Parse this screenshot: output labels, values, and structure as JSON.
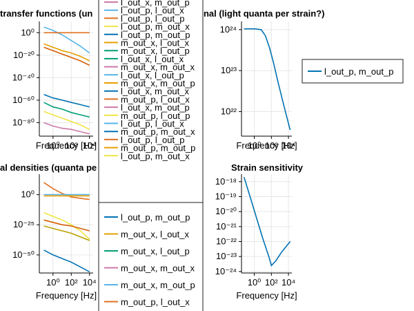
{
  "chart_data": [
    {
      "type": "line",
      "title": "transfer functions (un",
      "xlabel": "Frequency [Hz]",
      "x_scale": "log",
      "y_scale": "log",
      "x_ticks": [
        {
          "v": 0,
          "t": "10⁰"
        },
        {
          "v": 2,
          "t": "10²"
        },
        {
          "v": 4,
          "t": "10⁴"
        }
      ],
      "y_ticks": [
        {
          "v": 0,
          "t": "10⁰"
        },
        {
          "v": -20,
          "t": "10⁻²⁰"
        },
        {
          "v": -40,
          "t": "10⁻⁴⁰"
        },
        {
          "v": -60,
          "t": "10⁻⁶⁰"
        },
        {
          "v": -80,
          "t": "10⁻⁸⁰"
        }
      ],
      "xlim": [
        -1.5,
        4.4
      ],
      "ylim": [
        -92,
        10
      ],
      "grid": true,
      "series": [
        {
          "color": "#56b4e9",
          "x": [
            -1,
            0,
            1,
            2,
            3,
            4
          ],
          "y": [
            5,
            2,
            -2,
            -7,
            -12,
            -18
          ]
        },
        {
          "color": "#e07020",
          "x": [
            -1,
            0,
            1,
            2,
            3,
            4
          ],
          "y": [
            0,
            0,
            0,
            0,
            0,
            0
          ]
        },
        {
          "color": "#e69f00",
          "x": [
            -1,
            0,
            1,
            2,
            3,
            4
          ],
          "y": [
            -10,
            -13,
            -16,
            -18,
            -21,
            -25
          ]
        },
        {
          "color": "#d55e00",
          "x": [
            -1,
            0,
            1,
            2,
            3,
            4
          ],
          "y": [
            -13,
            -16,
            -19,
            -22,
            -25,
            -29
          ]
        },
        {
          "color": "#0072b2",
          "x": [
            -1,
            0,
            1,
            2,
            3,
            4
          ],
          "y": [
            -55,
            -58,
            -60,
            -62,
            -64,
            -66
          ]
        },
        {
          "color": "#009e73",
          "x": [
            -1,
            0,
            1,
            2,
            3,
            4
          ],
          "y": [
            -62,
            -66,
            -68,
            -71,
            -73,
            -75
          ]
        },
        {
          "color": "#f0e442",
          "x": [
            -1,
            0,
            1,
            2,
            3,
            4
          ],
          "y": [
            -70,
            -73,
            -76,
            -79,
            -82,
            -86
          ]
        },
        {
          "color": "#cc79a7",
          "x": [
            -1,
            0,
            1,
            2,
            3,
            4
          ],
          "y": [
            -80,
            -83,
            -85,
            -86,
            -88,
            -90
          ]
        }
      ]
    },
    {
      "type": "line",
      "title": "gnal (light quanta per strain?)",
      "xlabel": "Frequency [Hz]",
      "x_scale": "log",
      "y_scale": "log",
      "x_ticks": [
        {
          "v": 0,
          "t": "10⁰"
        },
        {
          "v": 2,
          "t": "10²"
        },
        {
          "v": 4,
          "t": "10⁴"
        }
      ],
      "y_ticks": [
        {
          "v": 24,
          "t": "10²⁴"
        },
        {
          "v": 23,
          "t": "10²³"
        },
        {
          "v": 22,
          "t": "10²²"
        }
      ],
      "xlim": [
        -1.5,
        4.4
      ],
      "ylim": [
        21.4,
        24.2
      ],
      "grid": true,
      "series": [
        {
          "name": "l_out_p, m_out_p",
          "color": "#0072b2",
          "x": [
            -1.2,
            0,
            0.8,
            1.3,
            1.8,
            2.3,
            2.8,
            3.4,
            4.2
          ],
          "y": [
            24.02,
            24.02,
            24.0,
            23.85,
            23.55,
            23.15,
            22.7,
            22.2,
            21.55
          ]
        }
      ]
    },
    {
      "type": "line",
      "title": "al densities (quanta pe",
      "xlabel": "Frequency [Hz]",
      "x_scale": "log",
      "y_scale": "log",
      "x_ticks": [
        {
          "v": 0,
          "t": "10⁰"
        },
        {
          "v": 2,
          "t": "10²"
        },
        {
          "v": 4,
          "t": "10⁴"
        }
      ],
      "y_ticks": [
        {
          "v": 0,
          "t": "10⁰"
        },
        {
          "v": -25,
          "t": "10⁻²⁵"
        },
        {
          "v": -50,
          "t": "10⁻⁵⁰"
        }
      ],
      "xlim": [
        -1.5,
        4.4
      ],
      "ylim": [
        -65,
        17
      ],
      "grid": true,
      "series": [
        {
          "color": "#e07020",
          "x": [
            -1,
            0,
            1,
            2,
            3,
            4
          ],
          "y": [
            10,
            5,
            1,
            -2,
            -3,
            -4
          ]
        },
        {
          "color": "#56b4e9",
          "x": [
            -1,
            0,
            1,
            2,
            3,
            4
          ],
          "y": [
            0,
            0,
            0,
            0,
            0,
            0
          ]
        },
        {
          "color": "#e69f00",
          "x": [
            -1,
            0,
            1,
            2,
            3,
            4
          ],
          "y": [
            -1,
            -1,
            -1,
            -1,
            -1,
            -1
          ]
        },
        {
          "color": "#f0e442",
          "x": [
            -1,
            0,
            1,
            2,
            3,
            4
          ],
          "y": [
            -15,
            -18,
            -21,
            -25,
            -30,
            -37
          ]
        },
        {
          "color": "#d55e00",
          "x": [
            -1,
            0,
            1,
            2,
            3,
            4
          ],
          "y": [
            -21,
            -23,
            -25,
            -26,
            -28,
            -30
          ]
        },
        {
          "color": "#b8a000",
          "x": [
            -1,
            0,
            1,
            2,
            3,
            4
          ],
          "y": [
            -26,
            -28,
            -30,
            -32,
            -35,
            -38
          ]
        },
        {
          "color": "#0072b2",
          "x": [
            -1,
            0,
            1,
            2,
            3,
            4
          ],
          "y": [
            -46,
            -50,
            -53,
            -56,
            -60,
            -64
          ]
        }
      ]
    },
    {
      "type": "line",
      "title": "Strain sensitivity",
      "xlabel": "Frequency [Hz]",
      "x_scale": "log",
      "y_scale": "log",
      "x_ticks": [
        {
          "v": 0,
          "t": "10⁰"
        },
        {
          "v": 2,
          "t": "10²"
        },
        {
          "v": 4,
          "t": "10⁴"
        }
      ],
      "y_ticks": [
        {
          "v": -18,
          "t": "10⁻¹⁸"
        },
        {
          "v": -19,
          "t": "10⁻¹⁹"
        },
        {
          "v": -20,
          "t": "10⁻²⁰"
        },
        {
          "v": -21,
          "t": "10⁻²¹"
        },
        {
          "v": -22,
          "t": "10⁻²²"
        },
        {
          "v": -23,
          "t": "10⁻²³"
        },
        {
          "v": -24,
          "t": "10⁻²⁴"
        }
      ],
      "xlim": [
        -1.5,
        4.4
      ],
      "ylim": [
        -24.1,
        -17.5
      ],
      "grid": true,
      "series": [
        {
          "color": "#0072b2",
          "x": [
            -1.2,
            -0.5,
            0.3,
            1.0,
            1.7,
            2.0,
            2.5,
            3.2,
            4.2
          ],
          "y": [
            -17.7,
            -19.0,
            -20.5,
            -21.8,
            -23.0,
            -23.6,
            -23.3,
            -22.7,
            -22.0
          ]
        }
      ]
    }
  ],
  "legends": {
    "central": [
      {
        "label": "l_out_x, m_out_p",
        "color": "#cc79a7"
      },
      {
        "label": "l_out_p, l_out_x",
        "color": "#56b4e9"
      },
      {
        "label": "l_out_p, l_out_p",
        "color": "#e07020"
      },
      {
        "label": "l_out_p, m_out_x",
        "color": "#f0e442"
      },
      {
        "label": "l_out_p, m_out_p",
        "color": "#0072b2"
      },
      {
        "label": "m_out_x, l_out_x",
        "color": "#e69f00"
      },
      {
        "label": "m_out_x, l_out_p",
        "color": "#009e73"
      },
      {
        "label": "l_out_x, l_out_x",
        "color": "#009e73"
      },
      {
        "label": "m_out_x, m_out_x",
        "color": "#cc79a7"
      },
      {
        "label": "l_out_x, l_out_p",
        "color": "#56b4e9"
      },
      {
        "label": "m_out_x, m_out_p",
        "color": "#e69f00"
      },
      {
        "label": "l_out_x, m_out_x",
        "color": "#0072b2"
      },
      {
        "label": "m_out_p, l_out_x",
        "color": "#e07020"
      },
      {
        "label": "l_out_x, m_out_p",
        "color": "#cc79a7"
      },
      {
        "label": "m_out_p, l_out_p",
        "color": "#f0e442"
      },
      {
        "label": "l_out_p, l_out_x",
        "color": "#56b4e9"
      },
      {
        "label": "m_out_p, m_out_x",
        "color": "#0072b2"
      },
      {
        "label": "l_out_p, l_out_p",
        "color": "#e07020"
      },
      {
        "label": "m_out_p, m_out_p",
        "color": "#e69f00"
      },
      {
        "label": "l_out_p, m_out_x",
        "color": "#f0e442"
      }
    ],
    "lower": [
      {
        "label": "l_out_p, m_out_p",
        "color": "#0072b2"
      },
      {
        "label": "m_out_x, l_out_x",
        "color": "#e69f00"
      },
      {
        "label": "m_out_x, l_out_p",
        "color": "#009e73"
      },
      {
        "label": "m_out_x, m_out_x",
        "color": "#cc79a7"
      },
      {
        "label": "m_out_x, m_out_p",
        "color": "#56b4e9"
      },
      {
        "label": "m_out_p, l_out_x",
        "color": "#e07020"
      },
      {
        "label": "m_out_p, l_out_p",
        "color": "#f0e442"
      }
    ],
    "right": [
      {
        "label": "l_out_p, m_out_p",
        "color": "#0072b2"
      }
    ]
  }
}
